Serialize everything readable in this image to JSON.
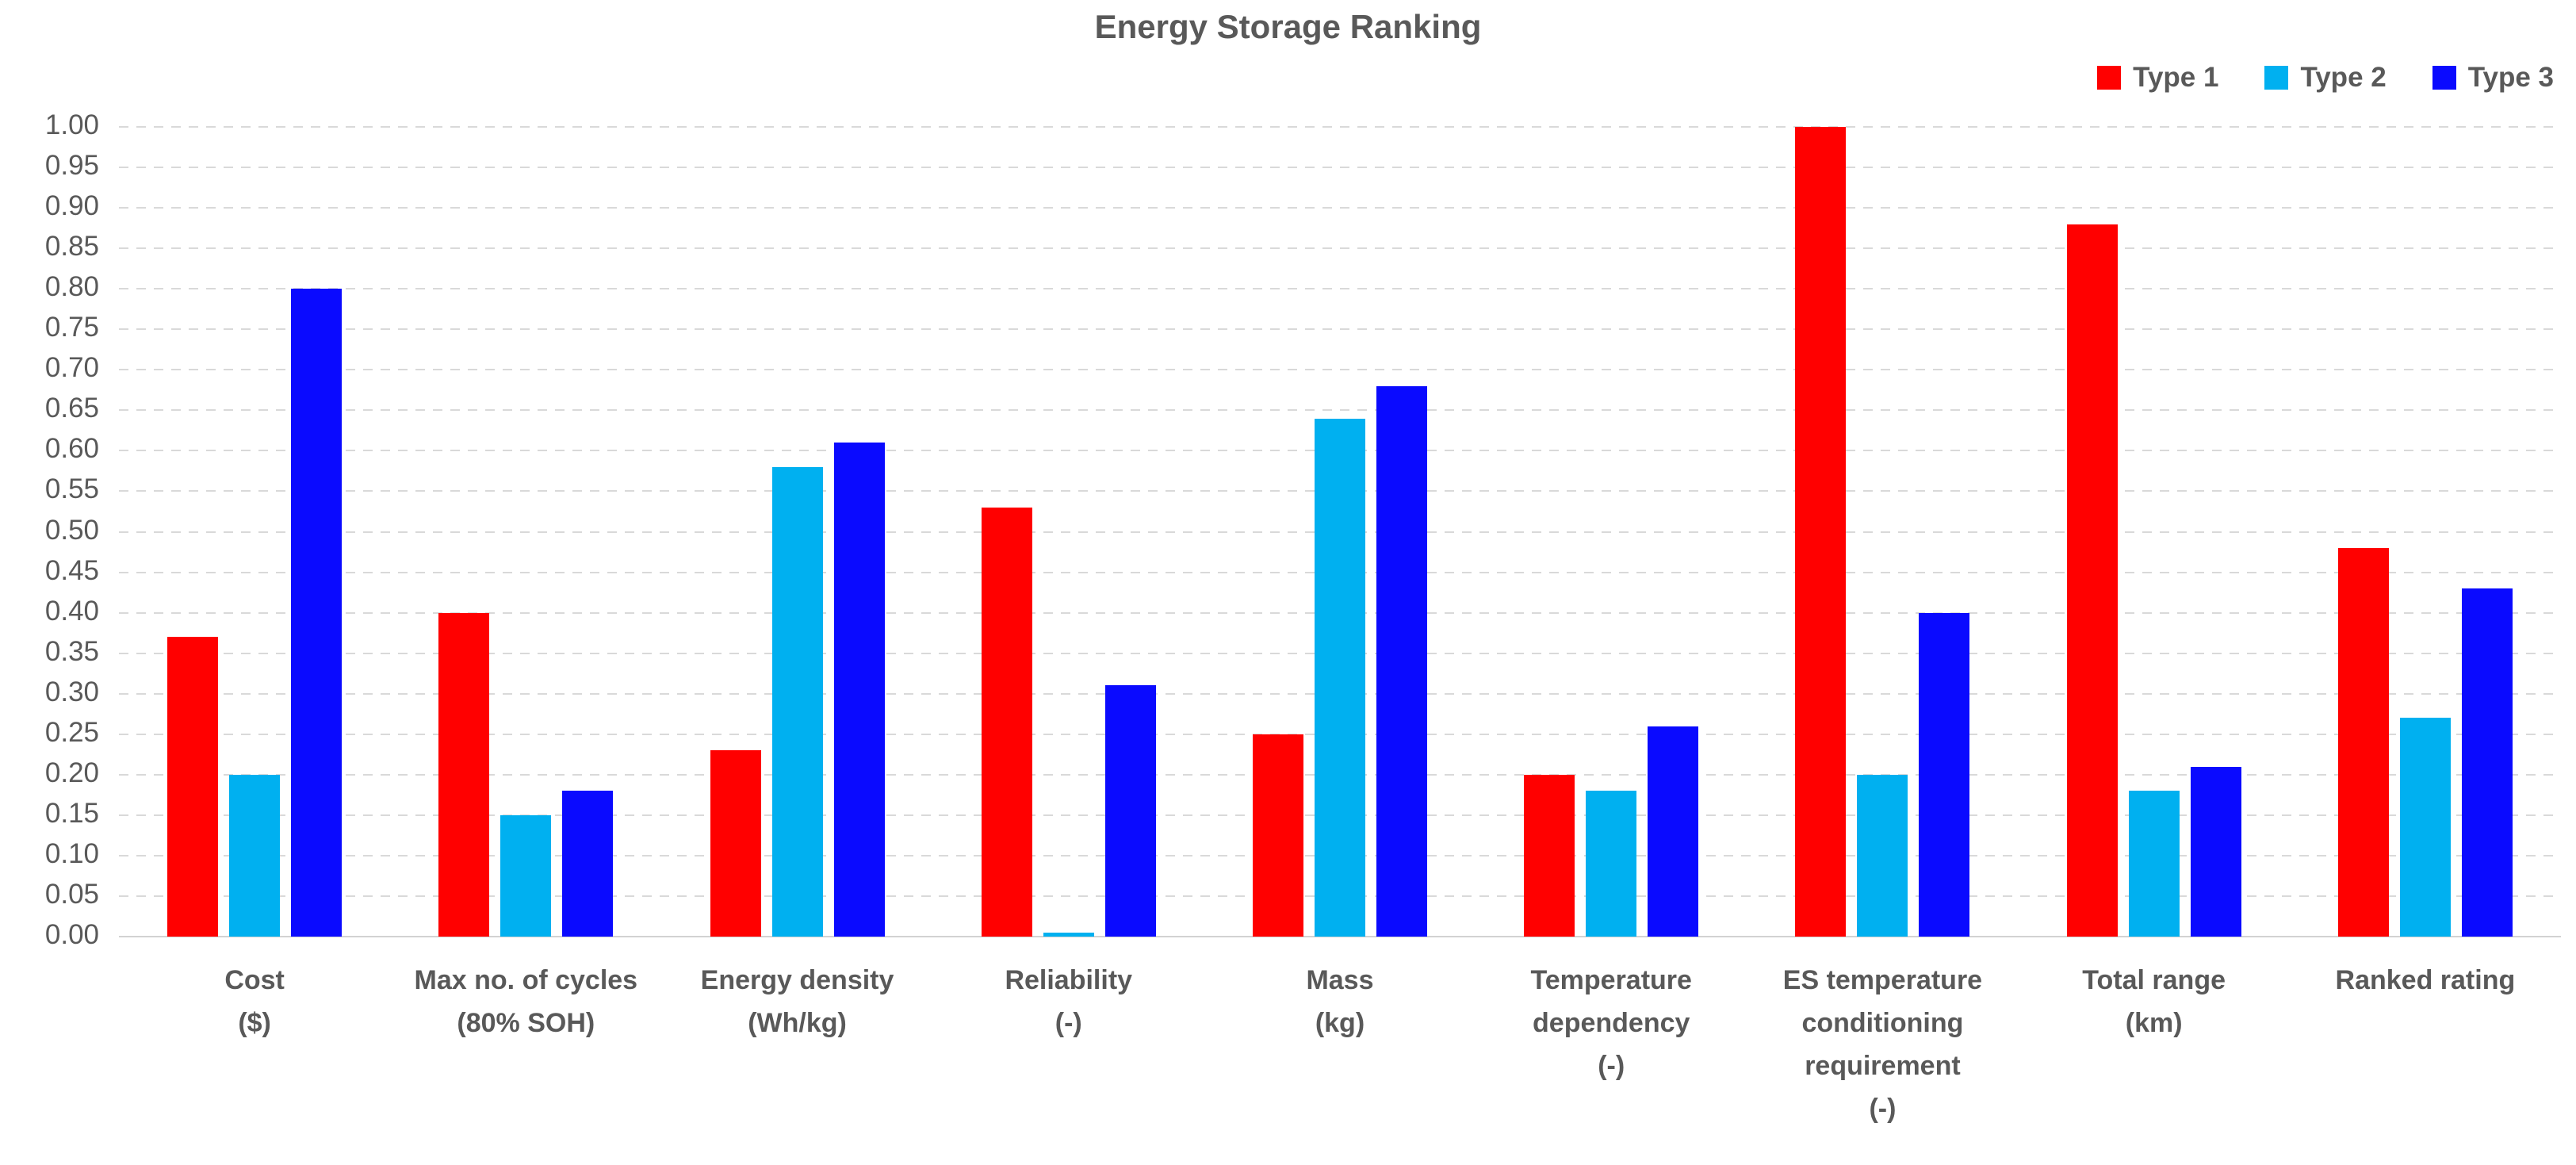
{
  "title": "Energy Storage Ranking",
  "legend": {
    "position": "top-right",
    "items": [
      {
        "label": "Type 1",
        "color": "#ff0000"
      },
      {
        "label": "Type 2",
        "color": "#00b0f0"
      },
      {
        "label": "Type 3",
        "color": "#0a0aff"
      }
    ]
  },
  "axis": {
    "text_color": "#595959",
    "gridline_color": "#d9d9d9",
    "gridline_style": "dashed",
    "baseline_color": "#d2d2d2"
  },
  "chart_data": {
    "type": "bar",
    "title": "Energy Storage Ranking",
    "categories": [
      [
        "Cost",
        "($)"
      ],
      [
        "Max no. of cycles",
        "(80% SOH)"
      ],
      [
        "Energy density",
        "(Wh/kg)"
      ],
      [
        "Reliability",
        "(-)"
      ],
      [
        "Mass",
        "(kg)"
      ],
      [
        "Temperature",
        "dependency",
        "(-)"
      ],
      [
        "ES temperature",
        "conditioning",
        "requirement",
        "(-)"
      ],
      [
        "Total range",
        "(km)"
      ],
      [
        "Ranked rating"
      ]
    ],
    "series": [
      {
        "name": "Type 1",
        "color": "#ff0000",
        "values": [
          0.37,
          0.4,
          0.23,
          0.53,
          0.25,
          0.2,
          1.0,
          0.88,
          0.48
        ]
      },
      {
        "name": "Type 2",
        "color": "#00b0f0",
        "values": [
          0.2,
          0.15,
          0.58,
          0.005,
          0.64,
          0.18,
          0.2,
          0.18,
          0.27
        ]
      },
      {
        "name": "Type 3",
        "color": "#0a0aff",
        "values": [
          0.8,
          0.18,
          0.61,
          0.31,
          0.68,
          0.26,
          0.4,
          0.21,
          0.43
        ]
      }
    ],
    "ylim": [
      0,
      1
    ],
    "yticks": [
      0,
      0.05,
      0.1,
      0.15,
      0.2,
      0.25,
      0.3,
      0.35,
      0.4,
      0.45,
      0.5,
      0.55,
      0.6,
      0.65,
      0.7,
      0.75,
      0.8,
      0.85,
      0.9,
      0.95,
      1.0
    ],
    "ytick_format": "0.00",
    "grid": "horizontal-dashed",
    "legend_position": "top-right",
    "xlabel": "",
    "ylabel": ""
  }
}
